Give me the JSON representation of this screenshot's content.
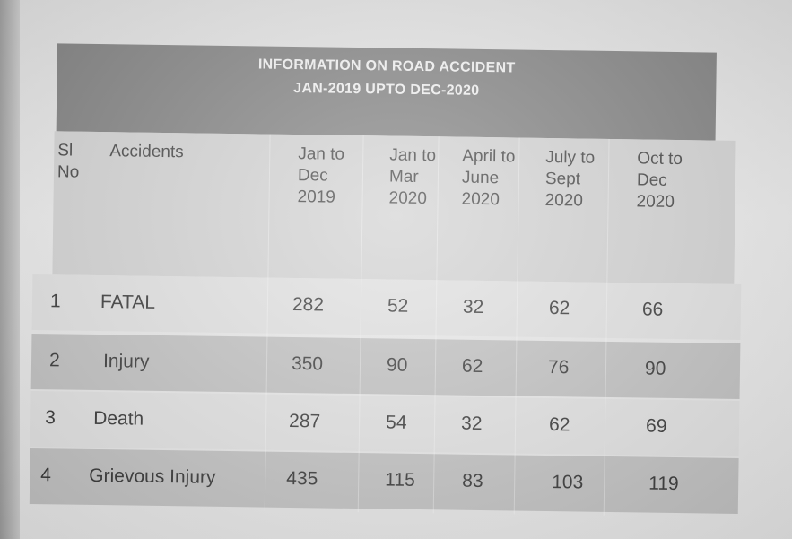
{
  "table": {
    "title_line1": "INFORMATION ON ROAD ACCIDENT",
    "title_line2": "JAN-2019 UPTO DEC-2020",
    "headers": {
      "sl_no": "Sl No",
      "accidents": "Accidents",
      "col1": "Jan to Dec 2019",
      "col2": "Jan to Mar 2020",
      "col3": "April to June 2020",
      "col4": "July to Sept 2020",
      "col5": "Oct to Dec 2020"
    },
    "rows": [
      {
        "sl": "1",
        "name": "FATAL",
        "v1": "282",
        "v2": "52",
        "v3": "32",
        "v4": "62",
        "v5": "66"
      },
      {
        "sl": "2",
        "name": "Injury",
        "v1": "350",
        "v2": "90",
        "v3": "62",
        "v4": "76",
        "v5": "90"
      },
      {
        "sl": "3",
        "name": "Death",
        "v1": "287",
        "v2": "54",
        "v3": "32",
        "v4": "62",
        "v5": "69"
      },
      {
        "sl": "4",
        "name": "Grievous Injury",
        "v1": "435",
        "v2": "115",
        "v3": "83",
        "v4": "103",
        "v5": "119"
      }
    ]
  }
}
